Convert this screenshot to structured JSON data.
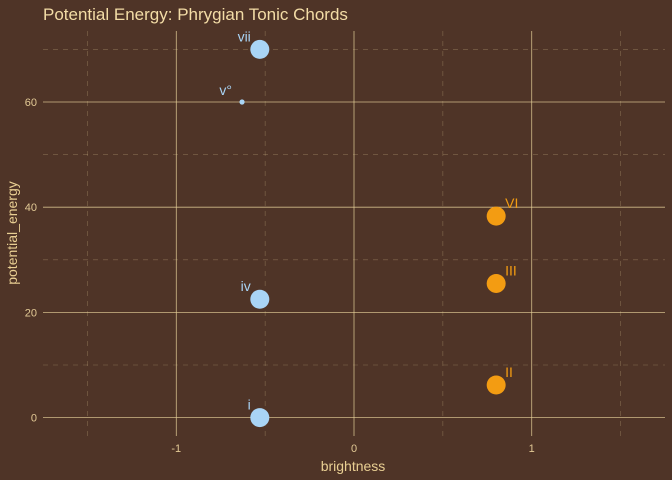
{
  "chart_data": {
    "type": "scatter",
    "title": "Potential Energy: Phrygian Tonic Chords",
    "xlabel": "brightness",
    "ylabel": "potential_energy",
    "xlim": [
      -1.75,
      1.75
    ],
    "ylim": [
      -3.5,
      73.5
    ],
    "x_ticks": [
      -1,
      0,
      1
    ],
    "x_tick_labels": [
      "-1",
      "0",
      "1"
    ],
    "y_ticks": [
      0,
      20,
      40,
      60
    ],
    "y_tick_labels": [
      "0",
      "20",
      "40",
      "60"
    ],
    "grid": true,
    "legend": "none",
    "colors": {
      "minor": "#a9d4f5",
      "major": "#f39c12",
      "background": "#4f3427",
      "grid": "#e8d29a"
    },
    "points": [
      {
        "label": "vii",
        "x": -0.53,
        "y": 70,
        "group": "minor",
        "size": "large"
      },
      {
        "label": "v°",
        "x": -0.63,
        "y": 60,
        "group": "minor",
        "size": "small"
      },
      {
        "label": "iv",
        "x": -0.53,
        "y": 22.5,
        "group": "minor",
        "size": "large"
      },
      {
        "label": "i",
        "x": -0.53,
        "y": 0,
        "group": "minor",
        "size": "large"
      },
      {
        "label": "VI",
        "x": 0.8,
        "y": 38.3,
        "group": "major",
        "size": "large"
      },
      {
        "label": "III",
        "x": 0.8,
        "y": 25.5,
        "group": "major",
        "size": "large"
      },
      {
        "label": "II",
        "x": 0.8,
        "y": 6.2,
        "group": "major",
        "size": "large"
      }
    ]
  }
}
